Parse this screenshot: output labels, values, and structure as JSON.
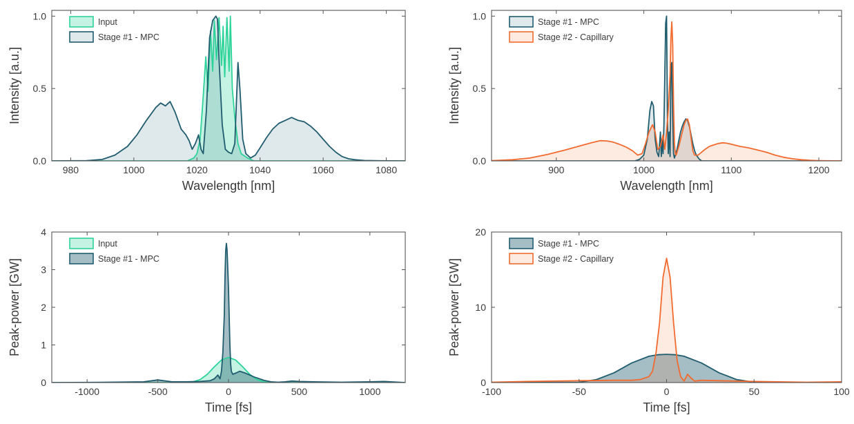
{
  "colors": {
    "input": "#2ed39a",
    "mpc": "#1f5c6e",
    "capillary": "#f26a2e",
    "axis": "#555555"
  },
  "chart_data": [
    {
      "type": "area",
      "panel": "top-left",
      "xlabel": "Wavelength  [nm]",
      "ylabel": "Intensity  [a.u.]",
      "xlim": [
        974,
        1086
      ],
      "ylim": [
        0,
        1.04
      ],
      "xticks": [
        980,
        1000,
        1020,
        1040,
        1060,
        1080
      ],
      "yticks": [
        0.0,
        0.5,
        1.0
      ],
      "xtick_labels": [
        "980",
        "1000",
        "1020",
        "1040",
        "1060",
        "1080"
      ],
      "ytick_labels": [
        "0.0",
        "0.5",
        "1.0"
      ],
      "legend": "top-left",
      "series": [
        {
          "name": "Input",
          "color": "#2ed39a",
          "x": [
            974,
            1017,
            1019,
            1020,
            1021,
            1022,
            1022.8,
            1023.5,
            1024.3,
            1025,
            1025.5,
            1026.2,
            1027,
            1027.8,
            1028.3,
            1028.8,
            1029.5,
            1030.2,
            1030.6,
            1031.2,
            1032,
            1033,
            1034,
            1036,
            1038,
            1086
          ],
          "y": [
            0,
            0,
            0.02,
            0.05,
            0.15,
            0.45,
            0.72,
            0.48,
            0.9,
            0.62,
            0.97,
            0.7,
            0.99,
            0.66,
            0.93,
            0.58,
            0.99,
            0.62,
            1.0,
            0.5,
            0.3,
            0.12,
            0.05,
            0.02,
            0,
            0
          ]
        },
        {
          "name": "Stage #1 - MPC",
          "color": "#1f5c6e",
          "x": [
            974,
            985,
            990,
            994,
            998,
            1001,
            1004,
            1007,
            1008.5,
            1010,
            1011.5,
            1013,
            1015,
            1016.5,
            1017.5,
            1018.5,
            1019.5,
            1020.5,
            1021.3,
            1022,
            1023,
            1024,
            1025,
            1026,
            1026.5,
            1027,
            1028,
            1029,
            1030,
            1031,
            1032,
            1032.5,
            1033,
            1033.6,
            1034.5,
            1035.5,
            1037,
            1038.5,
            1040,
            1042,
            1044,
            1046,
            1048,
            1050,
            1052,
            1054,
            1056,
            1058,
            1060,
            1062,
            1064,
            1066,
            1068,
            1070,
            1073,
            1078,
            1086
          ],
          "y": [
            0,
            0.002,
            0.01,
            0.04,
            0.1,
            0.18,
            0.28,
            0.37,
            0.4,
            0.38,
            0.41,
            0.34,
            0.22,
            0.18,
            0.14,
            0.08,
            0.12,
            0.18,
            0.08,
            0.05,
            0.35,
            0.85,
            0.97,
            1.0,
            0.98,
            0.7,
            0.25,
            0.08,
            0.06,
            0.05,
            0.12,
            0.4,
            0.68,
            0.5,
            0.15,
            0.05,
            0.02,
            0.04,
            0.09,
            0.16,
            0.22,
            0.26,
            0.28,
            0.3,
            0.28,
            0.27,
            0.24,
            0.2,
            0.15,
            0.1,
            0.06,
            0.03,
            0.015,
            0.008,
            0.003,
            0.001,
            0
          ]
        }
      ]
    },
    {
      "type": "area",
      "panel": "top-right",
      "xlabel": "Wavelength  [nm]",
      "ylabel": "Intensity  [a.u.]",
      "xlim": [
        826,
        1226
      ],
      "ylim": [
        0,
        1.04
      ],
      "xticks": [
        900,
        1000,
        1100,
        1200
      ],
      "yticks": [
        0.0,
        0.5,
        1.0
      ],
      "xtick_labels": [
        "900",
        "1000",
        "1100",
        "1200"
      ],
      "ytick_labels": [
        "0.0",
        "0.5",
        "1.0"
      ],
      "legend": "top-left",
      "series": [
        {
          "name": "Stage #1 - MPC",
          "color": "#1f5c6e",
          "x": [
            826,
            990,
            995,
            1000,
            1004,
            1007,
            1009,
            1011,
            1013,
            1015,
            1017,
            1019,
            1020,
            1021,
            1022,
            1023,
            1024,
            1025,
            1026,
            1027,
            1028,
            1029,
            1030,
            1031,
            1032,
            1033,
            1034,
            1035,
            1036,
            1038,
            1040,
            1042,
            1044,
            1046,
            1048,
            1050,
            1052,
            1054,
            1056,
            1058,
            1060,
            1063,
            1066,
            1226
          ],
          "y": [
            0,
            0,
            0.01,
            0.04,
            0.15,
            0.35,
            0.41,
            0.38,
            0.15,
            0.06,
            0.03,
            0.2,
            0.03,
            0.15,
            0.05,
            0.25,
            0.6,
            0.95,
            1.0,
            0.3,
            0.05,
            0.2,
            0.03,
            0.65,
            0.68,
            0.3,
            0.05,
            0.02,
            0.04,
            0.08,
            0.14,
            0.2,
            0.24,
            0.27,
            0.29,
            0.28,
            0.24,
            0.18,
            0.12,
            0.07,
            0.04,
            0.015,
            0,
            0
          ]
        },
        {
          "name": "Stage #2 - Capillary",
          "color": "#f26a2e",
          "x": [
            826,
            850,
            870,
            890,
            910,
            925,
            940,
            950,
            958,
            965,
            972,
            980,
            987,
            993,
            998,
            1002,
            1006,
            1010,
            1013,
            1016,
            1019,
            1022,
            1024,
            1026,
            1028,
            1030,
            1031,
            1032,
            1033,
            1034,
            1035,
            1036,
            1037,
            1038,
            1040,
            1042,
            1044,
            1046,
            1048,
            1050,
            1052,
            1054,
            1056,
            1058,
            1062,
            1066,
            1070,
            1075,
            1080,
            1085,
            1090,
            1095,
            1100,
            1110,
            1120,
            1130,
            1140,
            1150,
            1160,
            1170,
            1180,
            1190,
            1200,
            1226
          ],
          "y": [
            0.002,
            0.008,
            0.02,
            0.045,
            0.075,
            0.1,
            0.125,
            0.14,
            0.138,
            0.13,
            0.115,
            0.095,
            0.07,
            0.04,
            0.05,
            0.12,
            0.2,
            0.25,
            0.2,
            0.08,
            0.1,
            0.18,
            0.08,
            0.2,
            0.35,
            0.6,
            0.85,
            0.96,
            0.8,
            0.4,
            0.12,
            0.05,
            0.04,
            0.06,
            0.1,
            0.15,
            0.2,
            0.25,
            0.28,
            0.29,
            0.25,
            0.16,
            0.07,
            0.04,
            0.04,
            0.06,
            0.08,
            0.1,
            0.11,
            0.12,
            0.125,
            0.122,
            0.115,
            0.1,
            0.09,
            0.075,
            0.06,
            0.04,
            0.025,
            0.015,
            0.008,
            0.004,
            0.002,
            0
          ]
        }
      ]
    },
    {
      "type": "area",
      "panel": "bottom-left",
      "xlabel": "Time  [fs]",
      "ylabel": "Peak-power  [GW]",
      "xlim": [
        -1250,
        1250
      ],
      "ylim": [
        0,
        4
      ],
      "xticks": [
        -1000,
        -500,
        0,
        500,
        1000
      ],
      "yticks": [
        0,
        1,
        2,
        3,
        4
      ],
      "xtick_labels": [
        "-1000",
        "-500",
        "0",
        "500",
        "1000"
      ],
      "ytick_labels": [
        "0",
        "1",
        "2",
        "3",
        "4"
      ],
      "legend": "top-left",
      "series": [
        {
          "name": "Input",
          "color": "#2ed39a",
          "x": [
            -1250,
            -300,
            -250,
            -200,
            -150,
            -100,
            -50,
            0,
            50,
            100,
            150,
            200,
            250,
            300,
            1250
          ],
          "y": [
            0,
            0,
            0.02,
            0.08,
            0.22,
            0.42,
            0.6,
            0.67,
            0.6,
            0.42,
            0.22,
            0.08,
            0.02,
            0,
            0
          ]
        },
        {
          "name": "Stage #1 - MPC",
          "color": "#1f5c6e",
          "x": [
            -1250,
            -900,
            -600,
            -540,
            -500,
            -460,
            -400,
            -300,
            -200,
            -130,
            -100,
            -75,
            -60,
            -50,
            -40,
            -30,
            -25,
            -20,
            -15,
            -10,
            0,
            10,
            15,
            20,
            30,
            50,
            80,
            120,
            180,
            250,
            300,
            350,
            400,
            450,
            500,
            600,
            800,
            1000,
            1100,
            1250
          ],
          "y": [
            0,
            0.005,
            0.02,
            0.05,
            0.07,
            0.05,
            0.02,
            0.02,
            0.03,
            0.05,
            0.1,
            0.2,
            0.1,
            0.3,
            0.8,
            1.8,
            2.8,
            3.5,
            3.7,
            3.5,
            2.5,
            1.0,
            0.5,
            0.3,
            0.22,
            0.25,
            0.3,
            0.25,
            0.15,
            0.06,
            0.02,
            0.01,
            0.02,
            0.04,
            0.03,
            0.02,
            0.01,
            0.02,
            0.03,
            0
          ]
        }
      ]
    },
    {
      "type": "area",
      "panel": "bottom-right",
      "xlabel": "Time  [fs]",
      "ylabel": "Peak-power  [GW]",
      "xlim": [
        -100,
        100
      ],
      "ylim": [
        0,
        20
      ],
      "xticks": [
        -100,
        -50,
        0,
        50,
        100
      ],
      "yticks": [
        0,
        10,
        20
      ],
      "xtick_labels": [
        "-100",
        "-50",
        "0",
        "50",
        "100"
      ],
      "ytick_labels": [
        "0",
        "10",
        "20"
      ],
      "legend": "top-left",
      "series": [
        {
          "name": "Stage #1 - MPC",
          "color": "#1f5c6e",
          "x": [
            -100,
            -50,
            -40,
            -30,
            -20,
            -10,
            -5,
            0,
            5,
            10,
            20,
            30,
            40,
            50,
            60,
            100
          ],
          "y": [
            0,
            0.05,
            0.4,
            1.3,
            2.6,
            3.5,
            3.7,
            3.75,
            3.7,
            3.5,
            2.6,
            1.3,
            0.4,
            0.05,
            0,
            0
          ]
        },
        {
          "name": "Stage #2 - Capillary",
          "color": "#f26a2e",
          "x": [
            -100,
            -80,
            -50,
            -30,
            -20,
            -15,
            -10,
            -8,
            -6,
            -4,
            -2,
            0,
            2,
            4,
            6,
            8,
            10,
            12,
            14,
            16,
            20,
            30,
            50,
            80,
            100
          ],
          "y": [
            0.05,
            0.15,
            0.25,
            0.3,
            0.3,
            0.4,
            0.8,
            1.5,
            4,
            8,
            14,
            16.5,
            14,
            8,
            3,
            0.8,
            0.2,
            1.1,
            0.6,
            0.2,
            0.3,
            0.25,
            0.15,
            0.05,
            0.1
          ]
        }
      ]
    }
  ]
}
